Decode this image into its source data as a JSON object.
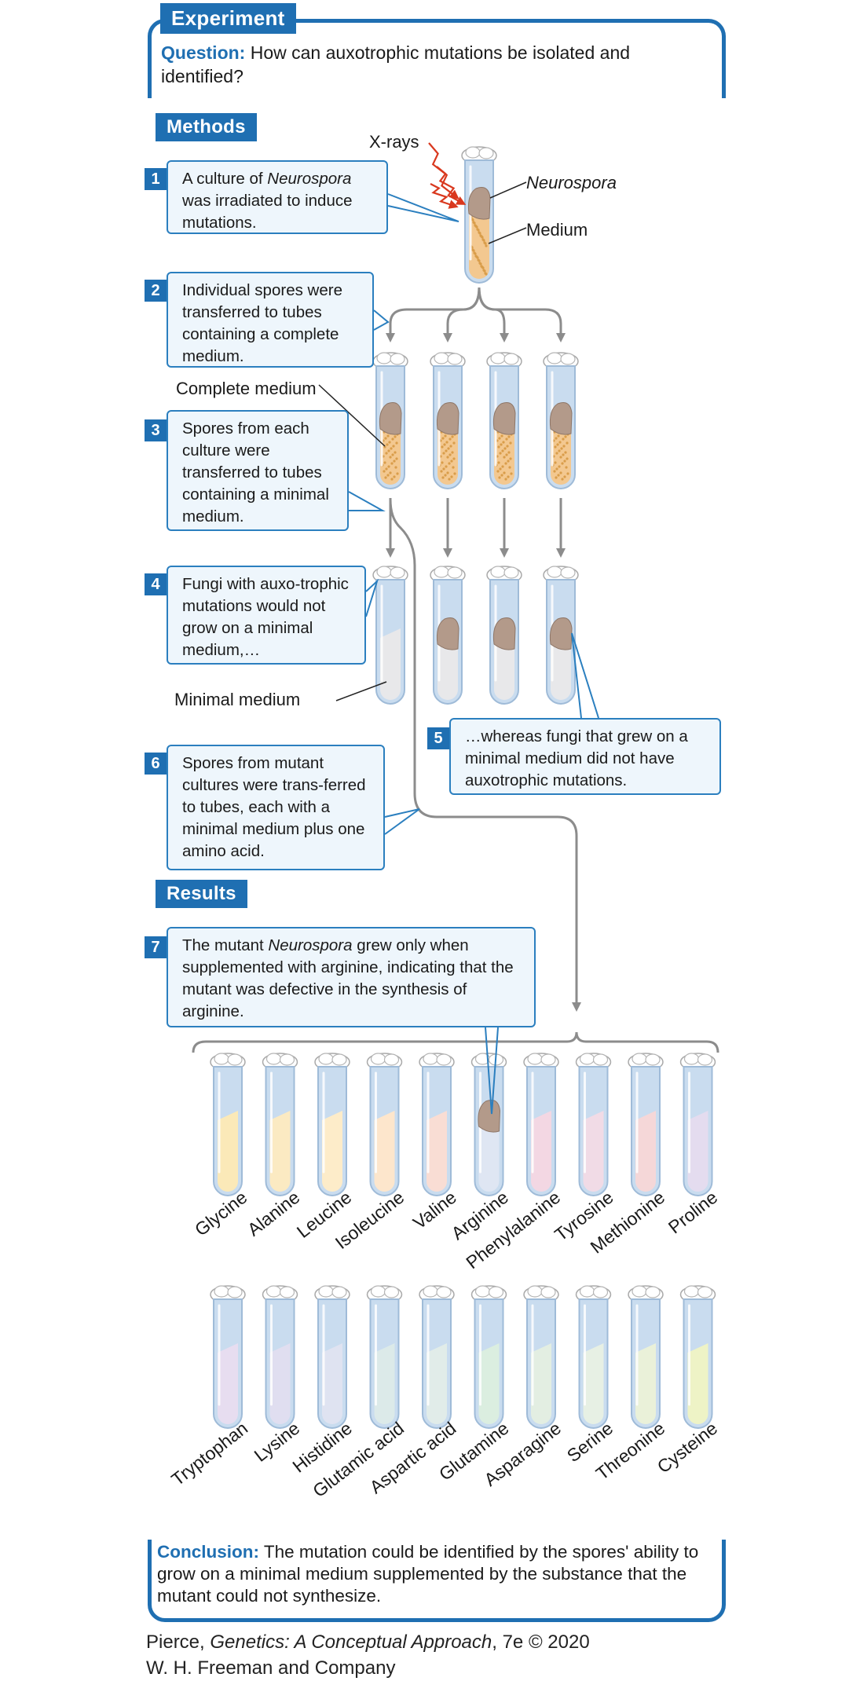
{
  "experiment_tag": "Experiment",
  "question": {
    "label": "Question:",
    "text": "How can auxotrophic mutations be isolated and identified?"
  },
  "methods_tag": "Methods",
  "results_tag": "Results",
  "labels": {
    "xrays": "X-rays",
    "neurospora": "Neurospora",
    "medium": "Medium",
    "complete_medium": "Complete medium",
    "minimal_medium": "Minimal medium"
  },
  "steps": [
    {
      "num": "1",
      "text_before": "A culture of ",
      "italic": "Neurospora",
      "text_after": " was irradiated to induce mutations."
    },
    {
      "num": "2",
      "text": "Individual spores were transferred to tubes containing a complete medium."
    },
    {
      "num": "3",
      "text": "Spores from each culture were transferred to tubes containing a minimal medium."
    },
    {
      "num": "4",
      "text": "Fungi with auxo-trophic mutations would not grow on a minimal medium,…"
    },
    {
      "num": "5",
      "text": "…whereas fungi that grew on a minimal medium did not have auxotrophic mutations."
    },
    {
      "num": "6",
      "text": "Spores from mutant cultures were trans-ferred to tubes, each with a minimal medium plus one amino acid."
    },
    {
      "num": "7",
      "text_before": "The mutant ",
      "italic": "Neurospora",
      "text_after": " grew only when supplemented with arginine, indicating that the mutant was defective in the synthesis of arginine."
    }
  ],
  "amino_acids_row1": [
    "Glycine",
    "Alanine",
    "Leucine",
    "Isoleucine",
    "Valine",
    "Arginine",
    "Phenylalanine",
    "Tyrosine",
    "Methionine",
    "Proline"
  ],
  "amino_acids_row2": [
    "Tryptophan",
    "Lysine",
    "Histidine",
    "Glutamic acid",
    "Aspartic acid",
    "Glutamine",
    "Asparagine",
    "Serine",
    "Threonine",
    "Cysteine"
  ],
  "row1_colors": [
    "#fbe9b8",
    "#fbeac2",
    "#fdecc9",
    "#fde6cc",
    "#f9ddd4",
    "#dfe6f3",
    "#f3d7e3",
    "#f1dbe6",
    "#f5d7d8",
    "#e4dcef"
  ],
  "row2_colors": [
    "#e7ddf0",
    "#e0def0",
    "#dfe3f1",
    "#dceae9",
    "#e1ece9",
    "#dbeee0",
    "#e3eee2",
    "#e7f0e4",
    "#eaf1d9",
    "#eef3c6"
  ],
  "growth_tube_index_row1": 5,
  "conclusion": {
    "label": "Conclusion:",
    "text": "The mutation could be identified by the spores' ability to grow on a minimal medium supplemented by the substance that the mutant could not synthesize."
  },
  "credit": {
    "line1_before": "Pierce, ",
    "line1_italic": "Genetics: A Conceptual Approach",
    "line1_after": ", 7e © 2020",
    "line2": "W. H. Freeman and Company"
  },
  "colors": {
    "accent": "#1f6fb2",
    "arrow": "#8c8c8c",
    "xray": "#d9381e",
    "growth": "#b39a8a"
  }
}
